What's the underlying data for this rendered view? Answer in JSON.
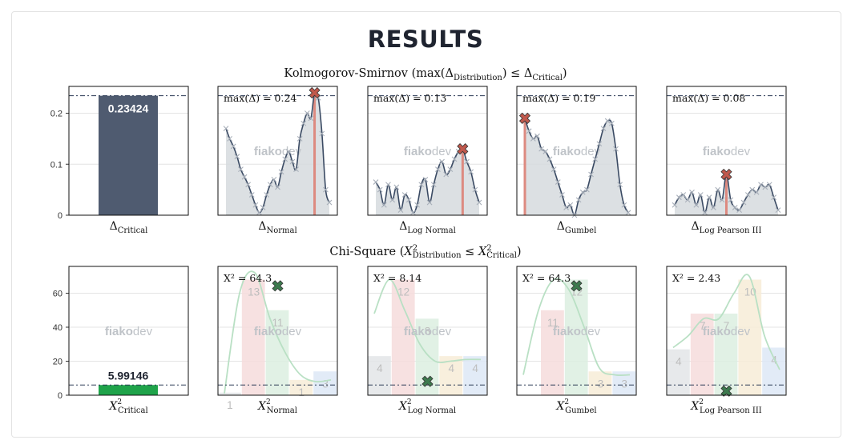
{
  "page": {
    "title": "RESULTS",
    "ks_heading": "Kolmogorov-Smirnov (max(Δ_Distribution) ≤ Δ_Critical)",
    "chi_heading": "Chi-Square (X²_Distribution ≤ X²_Critical)",
    "watermark_bold": "fiako",
    "watermark_light": "dev"
  },
  "colors": {
    "critical_bar": "#4f5b70",
    "critical_bar_chi": "#1fa34a",
    "delta_line": "#3a4a63",
    "delta_fill": "#d6dade",
    "max_marker": "#c0584c",
    "max_line": "#dd8a80",
    "chi_marker": "#3d7a4e",
    "critical_dash": "#2b3a55",
    "bar_gray": "#e3e5e8",
    "bar_pink": "#f6dcdc",
    "bar_green": "#dcefe0",
    "bar_yellow": "#f7ecd7",
    "bar_blue": "#dde8f6",
    "curve": "#b9e0c4"
  },
  "chart_data": [
    {
      "id": "ks-critical",
      "type": "bar",
      "categories": [
        "Δ_Critical"
      ],
      "values": [
        0.23424
      ],
      "value_label": "0.23424",
      "yticks": [
        "0",
        "0.1",
        "0.2"
      ],
      "ylim": [
        0,
        0.24
      ],
      "xlabel_main": "Δ",
      "xlabel_sub": "Critical"
    },
    {
      "id": "ks-normal",
      "type": "line",
      "xlabel_main": "Δ",
      "xlabel_sub": "Normal",
      "annotation": "max(Δ) = 0.24",
      "max_index": 24,
      "ylim": [
        0,
        0.24
      ],
      "values": [
        0.17,
        0.15,
        0.135,
        0.115,
        0.09,
        0.075,
        0.06,
        0.04,
        0.02,
        0.005,
        0.015,
        0.04,
        0.06,
        0.07,
        0.055,
        0.085,
        0.11,
        0.125,
        0.105,
        0.09,
        0.15,
        0.18,
        0.2,
        0.19,
        0.24,
        0.23,
        0.16,
        0.05,
        0.025
      ]
    },
    {
      "id": "ks-lognormal",
      "type": "line",
      "xlabel_main": "Δ",
      "xlabel_sub": "Log Normal",
      "annotation": "max(Δ) = 0.13",
      "max_index": 21,
      "ylim": [
        0,
        0.24
      ],
      "values": [
        0.065,
        0.05,
        0.02,
        0.06,
        0.03,
        0.055,
        0.01,
        0.04,
        0.03,
        0.005,
        0.02,
        0.06,
        0.07,
        0.025,
        0.06,
        0.09,
        0.105,
        0.08,
        0.09,
        0.11,
        0.125,
        0.13,
        0.105,
        0.085,
        0.05,
        0.025
      ]
    },
    {
      "id": "ks-gumbel",
      "type": "line",
      "xlabel_main": "Δ",
      "xlabel_sub": "Gumbel",
      "annotation": "max(Δ) = 0.19",
      "max_index": 0,
      "ylim": [
        0,
        0.24
      ],
      "values": [
        0.19,
        0.165,
        0.15,
        0.155,
        0.13,
        0.125,
        0.11,
        0.09,
        0.065,
        0.04,
        0.015,
        0.02,
        0.0,
        0.03,
        0.045,
        0.05,
        0.08,
        0.11,
        0.14,
        0.17,
        0.185,
        0.18,
        0.13,
        0.06,
        0.02,
        0.005
      ]
    },
    {
      "id": "ks-logpearson",
      "type": "line",
      "xlabel_main": "Δ",
      "xlabel_sub": "Log Pearson III",
      "annotation": "max(Δ) = 0.08",
      "max_index": 12,
      "ylim": [
        0,
        0.24
      ],
      "values": [
        0.02,
        0.035,
        0.04,
        0.03,
        0.045,
        0.02,
        0.04,
        0.005,
        0.035,
        0.015,
        0.05,
        0.03,
        0.08,
        0.03,
        0.015,
        0.01,
        0.025,
        0.04,
        0.05,
        0.045,
        0.06,
        0.055,
        0.06,
        0.035,
        0.01
      ]
    },
    {
      "id": "chi-critical",
      "type": "bar",
      "categories": [
        "X²_Critical"
      ],
      "values": [
        5.99146
      ],
      "value_label": "5.99146",
      "yticks": [
        "0",
        "20",
        "40",
        "60"
      ],
      "ylim": [
        0,
        72
      ],
      "xlabel_main": "X",
      "xlabel_sub": "Critical"
    },
    {
      "id": "chi-normal",
      "type": "bar",
      "xlabel_main": "X",
      "xlabel_sub": "Normal",
      "annotation": "X² = 64.3",
      "stat": 64.3,
      "ylim": [
        0,
        72
      ],
      "values": [
        1,
        13,
        11,
        1,
        3
      ],
      "bar_heights": [
        1.5,
        68,
        50,
        9,
        14
      ],
      "curve": [
        1,
        60,
        72,
        45,
        25,
        12,
        8,
        9
      ]
    },
    {
      "id": "chi-lognormal",
      "type": "bar",
      "xlabel_main": "X",
      "xlabel_sub": "Log Normal",
      "annotation": "X² = 8.14",
      "stat": 8.14,
      "ylim": [
        0,
        72
      ],
      "values": [
        4,
        12,
        8,
        4,
        4
      ],
      "bar_heights": [
        23,
        68,
        45,
        23,
        23
      ],
      "curve": [
        48,
        68,
        50,
        30,
        20,
        20,
        21,
        21
      ]
    },
    {
      "id": "chi-gumbel",
      "type": "bar",
      "xlabel_main": "X",
      "xlabel_sub": "Gumbel",
      "annotation": "X² = 64.3",
      "stat": 64.3,
      "ylim": [
        0,
        72
      ],
      "values": [
        11,
        12,
        3,
        3
      ],
      "bar_heights": [
        50,
        68,
        14,
        14
      ],
      "curve": [
        12,
        50,
        68,
        62,
        40,
        16,
        12,
        12
      ]
    },
    {
      "id": "chi-logpearson",
      "type": "bar",
      "xlabel_main": "X",
      "xlabel_sub": "Log Pearson III",
      "annotation": "X² = 2.43",
      "stat": 2.43,
      "ylim": [
        0,
        72
      ],
      "values": [
        4,
        7,
        7,
        10,
        4
      ],
      "bar_heights": [
        27,
        48,
        48,
        68,
        28
      ],
      "curve": [
        28,
        35,
        45,
        45,
        60,
        70,
        35,
        15
      ]
    }
  ]
}
